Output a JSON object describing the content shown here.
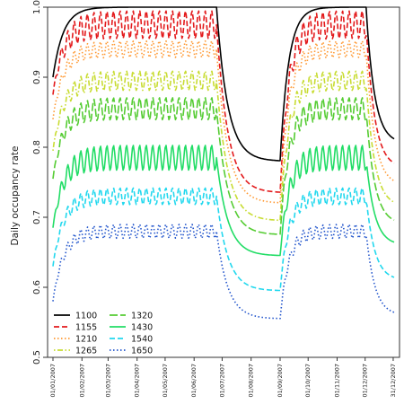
{
  "chart_data": {
    "type": "line",
    "title": "",
    "xlabel": "",
    "ylabel": "Daily occupancy rate",
    "ylim": [
      0.5,
      1.0
    ],
    "yticks": [
      0.5,
      0.6,
      0.7,
      0.8,
      0.9,
      1.0
    ],
    "ytick_labels": [
      "0.5",
      "0.6",
      "0.7",
      "0.8",
      "0.9",
      "1.0"
    ],
    "xlim": [
      "2007-01-01",
      "2007-12-31"
    ],
    "xtick_labels": [
      "01/01/2007",
      "01/02/2007",
      "01/03/2007",
      "01/04/2007",
      "01/05/2007",
      "01/06/2007",
      "01/07/2007",
      "01/08/2007",
      "01/09/2007",
      "01/10/2007",
      "01/11/2007",
      "01/12/2007",
      "31/12/2007"
    ],
    "legend_position": "bottom-left",
    "grid": false,
    "series": [
      {
        "name": "1100",
        "color": "#000000",
        "dash": "solid",
        "plateau": 1.0,
        "amp": 0.0,
        "dip": 0.78,
        "late": 0.805
      },
      {
        "name": "1155",
        "color": "#e31a1c",
        "dash": "dashed",
        "plateau": 0.975,
        "amp": 0.02,
        "dip": 0.735,
        "late": 0.77
      },
      {
        "name": "1210",
        "color": "#ff9933",
        "dash": "dotted",
        "plateau": 0.94,
        "amp": 0.012,
        "dip": 0.72,
        "late": 0.745
      },
      {
        "name": "1265",
        "color": "#c8dc32",
        "dash": "dotdash",
        "plateau": 0.895,
        "amp": 0.014,
        "dip": 0.695,
        "late": 0.715
      },
      {
        "name": "1320",
        "color": "#55cc33",
        "dash": "longdash",
        "plateau": 0.855,
        "amp": 0.016,
        "dip": 0.675,
        "late": 0.69
      },
      {
        "name": "1430",
        "color": "#22dd66",
        "dash": "solid",
        "plateau": 0.785,
        "amp": 0.018,
        "dip": 0.645,
        "late": 0.66
      },
      {
        "name": "1540",
        "color": "#22d8ee",
        "dash": "dashed",
        "plateau": 0.73,
        "amp": 0.012,
        "dip": 0.595,
        "late": 0.61
      },
      {
        "name": "1650",
        "color": "#2255cc",
        "dash": "dotted",
        "plateau": 0.68,
        "amp": 0.01,
        "dip": 0.555,
        "late": 0.56
      }
    ]
  }
}
